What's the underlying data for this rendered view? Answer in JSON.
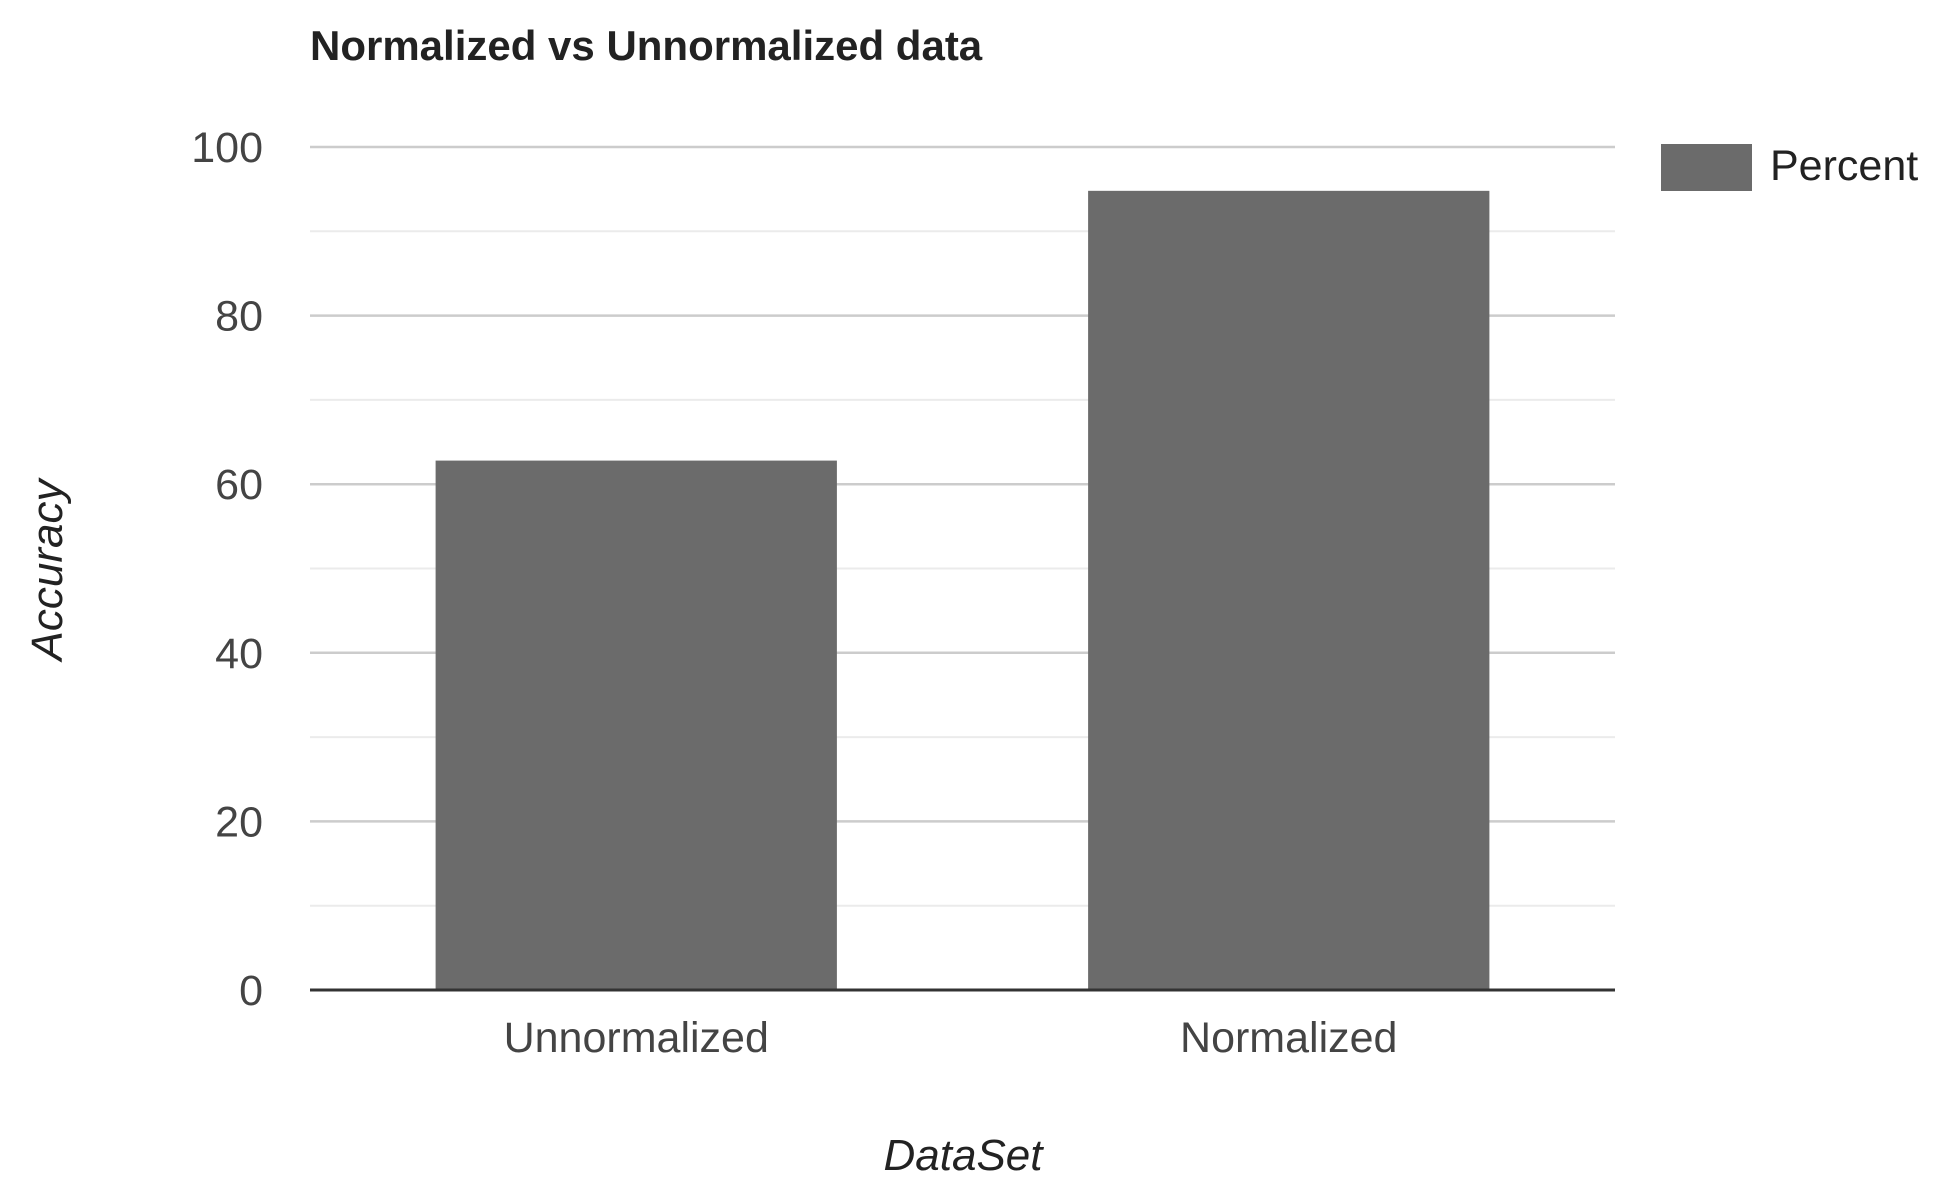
{
  "chart_data": {
    "type": "bar",
    "title": "Normalized vs Unnormalized data",
    "xlabel": "DataSet",
    "ylabel": "Accuracy",
    "categories": [
      "Unnormalized",
      "Normalized"
    ],
    "series": [
      {
        "name": "Percent",
        "values": [
          62.8,
          94.8
        ]
      }
    ],
    "ylim": [
      0,
      100
    ],
    "yticks": [
      "0",
      "20",
      "40",
      "60",
      "80",
      "100"
    ],
    "grid": true,
    "legend_position": "top-right",
    "colors": {
      "bar": "#6b6b6b",
      "gridline_major": "#cccccc",
      "gridline_minor": "#ebebeb",
      "baseline": "#333333"
    }
  }
}
